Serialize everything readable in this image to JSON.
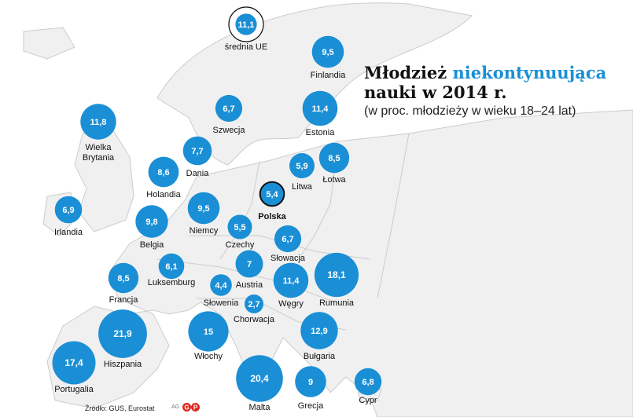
{
  "title": {
    "part1": "Młodzież",
    "accent": "niekontynuująca",
    "line2": "nauki w 2014 r.",
    "subtitle": "(w proc. młodzieży w wieku 18–24 lat)"
  },
  "source": "Źródło: GUS, Eurostat",
  "credit": "AG",
  "logo_letters": "GP",
  "colors": {
    "bubble": "#1a8fd6",
    "highlight_fill": "#1a8fd6",
    "eu_fill": "#ffffff",
    "land": "#f0f0f0",
    "border": "#cccccc"
  },
  "map_data": {
    "type": "bubble-map",
    "unit": "%",
    "countries": [
      {
        "name": "średnia UE",
        "value": "11,1",
        "kind": "eu"
      },
      {
        "name": "Finlandia",
        "value": "9,5"
      },
      {
        "name": "Estonia",
        "value": "11,4"
      },
      {
        "name": "Łotwa",
        "value": "8,5"
      },
      {
        "name": "Litwa",
        "value": "5,9"
      },
      {
        "name": "Polska",
        "value": "5,4",
        "kind": "highlight"
      },
      {
        "name": "Szwecja",
        "value": "6,7"
      },
      {
        "name": "Dania",
        "value": "7,7"
      },
      {
        "name": "Wielka Brytania",
        "value": "11,8"
      },
      {
        "name": "Holandia",
        "value": "8,6"
      },
      {
        "name": "Irlandia",
        "value": "6,9"
      },
      {
        "name": "Belgia",
        "value": "9,8"
      },
      {
        "name": "Niemcy",
        "value": "9,5"
      },
      {
        "name": "Czechy",
        "value": "5,5"
      },
      {
        "name": "Słowacja",
        "value": "6,7"
      },
      {
        "name": "Luksemburg",
        "value": "6,1"
      },
      {
        "name": "Austria",
        "value": "7"
      },
      {
        "name": "Francja",
        "value": "8,5"
      },
      {
        "name": "Słowenia",
        "value": "4,4"
      },
      {
        "name": "Chorwacja",
        "value": "2,7"
      },
      {
        "name": "Węgry",
        "value": "11,4"
      },
      {
        "name": "Rumunia",
        "value": "18,1"
      },
      {
        "name": "Hiszpania",
        "value": "21,9"
      },
      {
        "name": "Włochy",
        "value": "15"
      },
      {
        "name": "Bułgaria",
        "value": "12,9"
      },
      {
        "name": "Portugalia",
        "value": "17,4"
      },
      {
        "name": "Malta",
        "value": "20,4"
      },
      {
        "name": "Grecja",
        "value": "9"
      },
      {
        "name": "Cypr",
        "value": "6,8"
      }
    ]
  }
}
